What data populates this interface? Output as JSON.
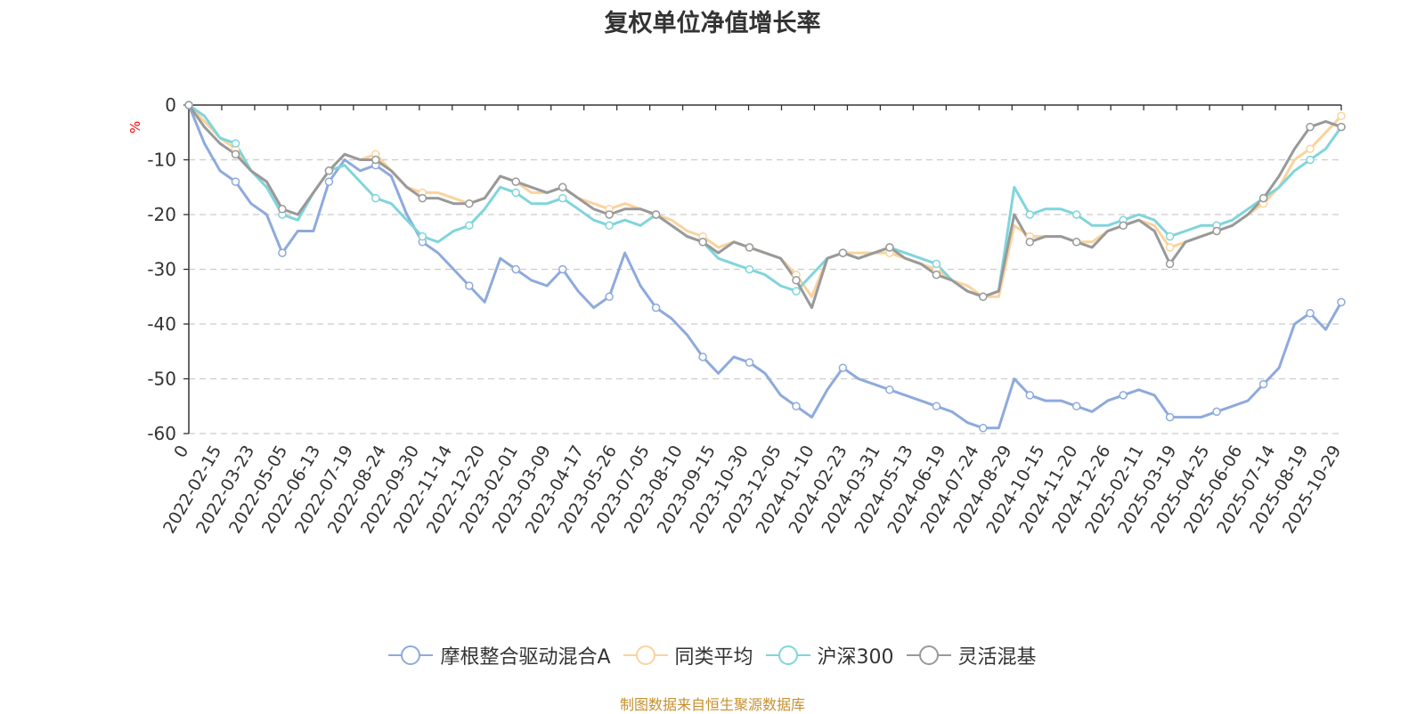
{
  "chart_data": {
    "type": "line",
    "title": "复权单位净值增长率",
    "ylabel": "%",
    "ylim": [
      -60,
      0
    ],
    "yticks": [
      0,
      -10,
      -20,
      -30,
      -40,
      -50,
      -60
    ],
    "x_ticks": [
      "0",
      "2022-02-15",
      "2022-03-23",
      "2022-05-05",
      "2022-06-13",
      "2022-07-19",
      "2022-08-24",
      "2022-09-30",
      "2022-11-14",
      "2022-12-20",
      "2023-02-01",
      "2023-03-09",
      "2023-04-17",
      "2023-05-26",
      "2023-07-05",
      "2023-08-10",
      "2023-09-15",
      "2023-10-30",
      "2023-12-05",
      "2024-01-10",
      "2024-02-23",
      "2024-03-31",
      "2024-05-13",
      "2024-06-19",
      "2024-07-24",
      "2024-08-29",
      "2024-10-15",
      "2024-11-20",
      "2024-12-26",
      "2025-02-11",
      "2025-03-19",
      "2025-04-25",
      "2025-06-06",
      "2025-07-14",
      "2025-08-19",
      "2025-10-29"
    ],
    "x_points": [
      "0",
      "2022-01-18",
      "2022-02-15",
      "2022-03-06",
      "2022-03-23",
      "2022-04-15",
      "2022-05-05",
      "2022-05-25",
      "2022-06-13",
      "2022-07-01",
      "2022-07-19",
      "2022-08-08",
      "2022-08-24",
      "2022-09-12",
      "2022-09-30",
      "2022-10-25",
      "2022-11-14",
      "2022-12-01",
      "2022-12-20",
      "2023-01-10",
      "2023-02-01",
      "2023-02-20",
      "2023-03-09",
      "2023-03-27",
      "2023-04-17",
      "2023-05-08",
      "2023-05-26",
      "2023-06-15",
      "2023-07-05",
      "2023-07-24",
      "2023-08-10",
      "2023-08-28",
      "2023-09-15",
      "2023-10-13",
      "2023-10-30",
      "2023-11-17",
      "2023-12-05",
      "2023-12-22",
      "2024-01-10",
      "2024-01-31",
      "2024-02-23",
      "2024-03-12",
      "2024-03-31",
      "2024-04-22",
      "2024-05-13",
      "2024-05-30",
      "2024-06-19",
      "2024-07-05",
      "2024-07-24",
      "2024-08-12",
      "2024-08-29",
      "2024-09-24",
      "2024-10-08",
      "2024-10-15",
      "2024-11-01",
      "2024-11-20",
      "2024-12-09",
      "2024-12-26",
      "2025-01-17",
      "2025-02-11",
      "2025-03-01",
      "2025-03-19",
      "2025-04-03",
      "2025-04-07",
      "2025-04-25",
      "2025-05-15",
      "2025-06-06",
      "2025-06-25",
      "2025-07-14",
      "2025-08-01",
      "2025-08-19",
      "2025-09-08",
      "2025-09-26",
      "2025-10-15",
      "2025-10-29"
    ],
    "series": [
      {
        "name": "摩根整合驱动混合A",
        "color": "#8eaadc",
        "values": [
          0,
          -7,
          -12,
          -14,
          -18,
          -20,
          -27,
          -23,
          -23,
          -14,
          -10,
          -12,
          -11,
          -13,
          -20,
          -25,
          -27,
          -30,
          -33,
          -36,
          -28,
          -30,
          -32,
          -33,
          -30,
          -34,
          -37,
          -35,
          -27,
          -33,
          -37,
          -39,
          -42,
          -46,
          -49,
          -46,
          -47,
          -49,
          -53,
          -55,
          -57,
          -52,
          -48,
          -50,
          -51,
          -52,
          -53,
          -54,
          -55,
          -56,
          -58,
          -59,
          -59,
          -50,
          -53,
          -54,
          -54,
          -55,
          -56,
          -54,
          -53,
          -52,
          -53,
          -57,
          -57,
          -57,
          -56,
          -55,
          -54,
          -51,
          -48,
          -40,
          -38,
          -41,
          -36
        ]
      },
      {
        "name": "同类平均",
        "color": "#fad39d",
        "values": [
          0,
          -3,
          -6,
          -8,
          -12,
          -14,
          -19,
          -20,
          -16,
          -12,
          -9,
          -10,
          -9,
          -12,
          -15,
          -16,
          -16,
          -17,
          -18,
          -17,
          -13,
          -14,
          -16,
          -16,
          -15,
          -17,
          -18,
          -19,
          -18,
          -19,
          -20,
          -21,
          -23,
          -24,
          -26,
          -25,
          -26,
          -27,
          -28,
          -31,
          -35,
          -28,
          -27,
          -27,
          -27,
          -27,
          -28,
          -29,
          -30,
          -32,
          -33,
          -35,
          -35,
          -22,
          -24,
          -24,
          -24,
          -25,
          -25,
          -23,
          -22,
          -21,
          -22,
          -26,
          -25,
          -24,
          -23,
          -22,
          -20,
          -18,
          -15,
          -10,
          -8,
          -5,
          -2
        ]
      },
      {
        "name": "沪深300",
        "color": "#80d5db",
        "values": [
          0,
          -2,
          -6,
          -7,
          -12,
          -15,
          -20,
          -21,
          -16,
          -12,
          -11,
          -14,
          -17,
          -18,
          -21,
          -24,
          -25,
          -23,
          -22,
          -19,
          -15,
          -16,
          -18,
          -18,
          -17,
          -19,
          -21,
          -22,
          -21,
          -22,
          -20,
          -22,
          -24,
          -25,
          -28,
          -29,
          -30,
          -31,
          -33,
          -34,
          -31,
          -28,
          -27,
          -28,
          -27,
          -26,
          -27,
          -28,
          -29,
          -32,
          -34,
          -35,
          -34,
          -15,
          -20,
          -19,
          -19,
          -20,
          -22,
          -22,
          -21,
          -20,
          -21,
          -24,
          -23,
          -22,
          -22,
          -21,
          -19,
          -17,
          -15,
          -12,
          -10,
          -8,
          -4
        ]
      },
      {
        "name": "灵活混基",
        "color": "#999999",
        "values": [
          0,
          -4,
          -7,
          -9,
          -12,
          -14,
          -19,
          -20,
          -16,
          -12,
          -9,
          -10,
          -10,
          -12,
          -15,
          -17,
          -17,
          -18,
          -18,
          -17,
          -13,
          -14,
          -15,
          -16,
          -15,
          -17,
          -19,
          -20,
          -19,
          -19,
          -20,
          -22,
          -24,
          -25,
          -27,
          -25,
          -26,
          -27,
          -28,
          -32,
          -37,
          -28,
          -27,
          -28,
          -27,
          -26,
          -28,
          -29,
          -31,
          -32,
          -34,
          -35,
          -34,
          -20,
          -25,
          -24,
          -24,
          -25,
          -26,
          -23,
          -22,
          -21,
          -23,
          -29,
          -25,
          -24,
          -23,
          -22,
          -20,
          -17,
          -13,
          -8,
          -4,
          -3,
          -4
        ]
      }
    ]
  },
  "legend": {
    "items": [
      "摩根整合驱动混合A",
      "同类平均",
      "沪深300",
      "灵活混基"
    ]
  },
  "footer": {
    "source_text": "制图数据来自恒生聚源数据库"
  }
}
